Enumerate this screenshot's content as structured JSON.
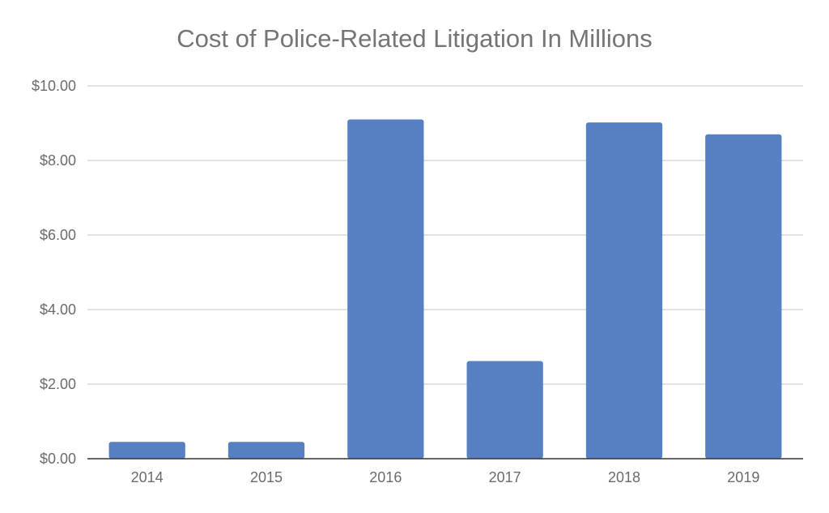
{
  "chart_data": {
    "type": "bar",
    "title": "Cost of Police-Related Litigation In Millions",
    "xlabel": "",
    "ylabel": "",
    "categories": [
      "2014",
      "2015",
      "2016",
      "2017",
      "2018",
      "2019"
    ],
    "values": [
      0.45,
      0.45,
      9.1,
      2.62,
      9.02,
      8.7
    ],
    "ylim": [
      0,
      10
    ],
    "y_ticks": [
      0,
      2,
      4,
      6,
      8,
      10
    ],
    "y_tick_labels": [
      "$0.00",
      "$2.00",
      "$4.00",
      "$6.00",
      "$8.00",
      "$10.00"
    ],
    "grid": true,
    "legend": "none",
    "bar_color": "#5680c1",
    "grid_color": "#d9d9d9",
    "axis_color": "#333333"
  }
}
